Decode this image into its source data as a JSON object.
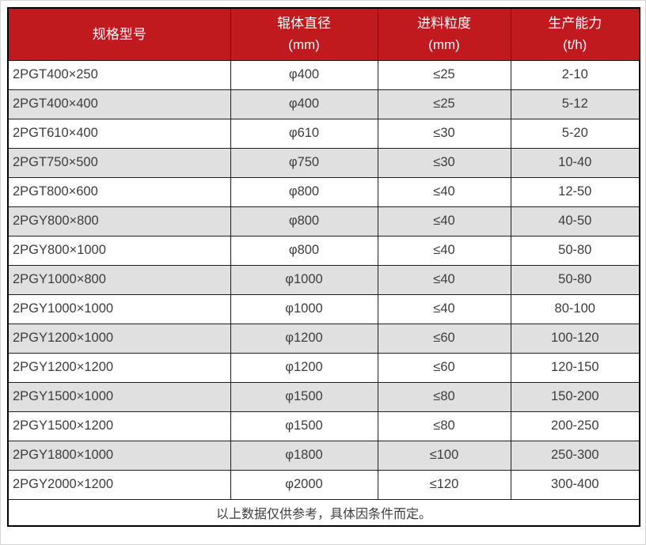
{
  "table": {
    "columns": [
      {
        "title": "规格型号",
        "unit": ""
      },
      {
        "title": "辊体直径",
        "unit": "(mm)"
      },
      {
        "title": "进料粒度",
        "unit": "(mm)"
      },
      {
        "title": "生产能力",
        "unit": "(t/h)"
      }
    ],
    "rows": [
      [
        "2PGT400×250",
        "φ400",
        "≤25",
        "2-10"
      ],
      [
        "2PGT400×400",
        "φ400",
        "≤25",
        "5-12"
      ],
      [
        "2PGT610×400",
        "φ610",
        "≤30",
        "5-20"
      ],
      [
        "2PGT750×500",
        "φ750",
        "≤30",
        "10-40"
      ],
      [
        "2PGT800×600",
        "φ800",
        "≤40",
        "12-50"
      ],
      [
        "2PGY800×800",
        "φ800",
        "≤40",
        "40-50"
      ],
      [
        "2PGY800×1000",
        "φ800",
        "≤40",
        "50-80"
      ],
      [
        "2PGY1000×800",
        "φ1000",
        "≤40",
        "50-80"
      ],
      [
        "2PGY1000×1000",
        "φ1000",
        "≤40",
        "80-100"
      ],
      [
        "2PGY1200×1000",
        "φ1200",
        "≤60",
        "100-120"
      ],
      [
        "2PGY1200×1200",
        "φ1200",
        "≤60",
        "120-150"
      ],
      [
        "2PGY1500×1000",
        "φ1500",
        "≤80",
        "150-200"
      ],
      [
        "2PGY1500×1200",
        "φ1500",
        "≤80",
        "200-250"
      ],
      [
        "2PGY1800×1000",
        "φ1800",
        "≤100",
        "250-300"
      ],
      [
        "2PGY2000×1200",
        "φ2000",
        "≤120",
        "300-400"
      ]
    ],
    "footnote": "以上数据仅供参考，具体因条件而定。"
  },
  "colors": {
    "header_bg": "#c0191e",
    "header_text": "#ffffff",
    "row_alt_bg": "#e0e0e0",
    "grid_border": "#1f1f1f",
    "text": "#3d3d3d"
  }
}
